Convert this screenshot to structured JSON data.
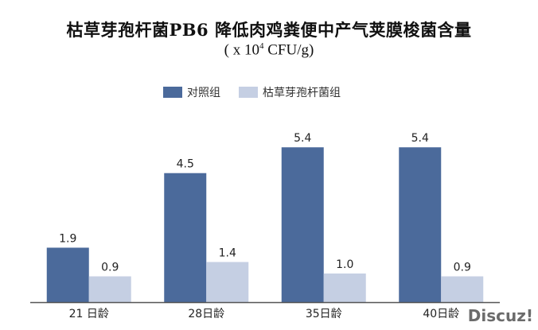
{
  "chart_data": {
    "type": "bar",
    "title": "枯草芽孢杆菌PB6 降低肉鸡粪便中产气荚膜梭菌含量",
    "subtitle_prefix": "( x 10",
    "subtitle_exp": "4",
    "subtitle_suffix": " CFU/g)",
    "categories": [
      "21 日龄",
      "28日龄",
      "35日龄",
      "40日龄"
    ],
    "series": [
      {
        "name": "对照组",
        "values": [
          1.9,
          4.5,
          5.4,
          5.4
        ],
        "labels": [
          "1.9",
          "4.5",
          "5.4",
          "5.4"
        ],
        "color": "#4b6a9b"
      },
      {
        "name": "枯草芽孢杆菌组",
        "values": [
          0.9,
          1.4,
          1.0,
          0.9
        ],
        "labels": [
          "0.9",
          "1.4",
          "1.0",
          "0.9"
        ],
        "color": "#c5cfe3"
      }
    ],
    "ylim": [
      0,
      6.1
    ],
    "legend_position": "top",
    "grid": false
  },
  "watermark": "Discuz!"
}
